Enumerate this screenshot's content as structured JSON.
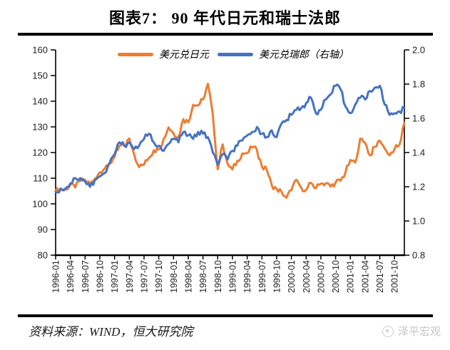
{
  "title": "图表7：  90 年代日元和瑞士法郎",
  "footer": {
    "source": "资料来源：WIND，恒大研究院",
    "brand": "泽平宏观",
    "brand_icon": "circle-logo"
  },
  "colors": {
    "usdjpy_line": "#ED7D31",
    "usdchf_line": "#4472C4",
    "axis": "#000000",
    "brand_gray": "#C6C6C6"
  },
  "chart_data": {
    "type": "line",
    "title": "图表7： 90 年代日元和瑞士法郎",
    "x_start": "1996-01",
    "x_end": "2001-12",
    "x_tick_labels": [
      "1996-01",
      "1996-04",
      "1996-07",
      "1996-10",
      "1997-01",
      "1997-04",
      "1997-07",
      "1997-10",
      "1998-01",
      "1998-04",
      "1998-07",
      "1998-10",
      "1999-01",
      "1999-04",
      "1999-07",
      "1999-10",
      "2000-01",
      "2000-04",
      "2000-07",
      "2000-10",
      "2001-01",
      "2001-04",
      "2001-07",
      "2001-10"
    ],
    "left_axis": {
      "min": 80,
      "max": 160,
      "step": 10,
      "tick_labels": [
        "160",
        "150",
        "140",
        "130",
        "120",
        "110",
        "100",
        "90",
        "80"
      ]
    },
    "right_axis": {
      "min": 0.8,
      "max": 2.0,
      "step": 0.2,
      "tick_labels": [
        "2.0",
        "1.8",
        "1.6",
        "1.4",
        "1.2",
        "1.0",
        "0.8"
      ]
    },
    "legend_position": "top",
    "grid": false,
    "series": [
      {
        "name": "美元兑日元",
        "axis": "left",
        "color": "#ED7D31",
        "monthly_values": [
          105.0,
          105.6,
          105.8,
          107.4,
          106.4,
          108.9,
          109.3,
          107.6,
          109.8,
          112.3,
          113.8,
          115.8,
          118.2,
          122.6,
          122.5,
          125.5,
          119.2,
          114.3,
          115.3,
          117.9,
          120.9,
          121.2,
          125.3,
          129.8,
          127.5,
          126.1,
          133.0,
          131.8,
          138.6,
          138.3,
          140.7,
          146.8,
          134.9,
          113.5,
          123.2,
          115.6,
          113.4,
          116.8,
          119.6,
          119.8,
          122.0,
          120.9,
          114.5,
          113.2,
          107.3,
          105.9,
          104.7,
          102.4,
          105.3,
          109.4,
          106.3,
          105.5,
          108.2,
          106.1,
          107.9,
          108.0,
          106.7,
          108.4,
          109.0,
          112.2,
          117.1,
          116.1,
          125.4,
          123.8,
          118.9,
          122.2,
          124.6,
          121.5,
          118.9,
          121.3,
          123.0,
          131.5
        ]
      },
      {
        "name": "美元兑瑞郎（右轴）",
        "axis": "right",
        "color": "#4472C4",
        "monthly_values": [
          1.17,
          1.19,
          1.19,
          1.22,
          1.25,
          1.25,
          1.23,
          1.2,
          1.24,
          1.26,
          1.28,
          1.34,
          1.39,
          1.46,
          1.44,
          1.46,
          1.42,
          1.44,
          1.48,
          1.51,
          1.46,
          1.44,
          1.41,
          1.45,
          1.48,
          1.46,
          1.52,
          1.5,
          1.48,
          1.52,
          1.51,
          1.49,
          1.4,
          1.33,
          1.39,
          1.36,
          1.41,
          1.44,
          1.47,
          1.5,
          1.52,
          1.55,
          1.51,
          1.49,
          1.53,
          1.49,
          1.57,
          1.59,
          1.62,
          1.65,
          1.66,
          1.69,
          1.72,
          1.63,
          1.65,
          1.71,
          1.74,
          1.79,
          1.77,
          1.67,
          1.63,
          1.68,
          1.72,
          1.71,
          1.76,
          1.78,
          1.79,
          1.68,
          1.62,
          1.63,
          1.64,
          1.66
        ]
      }
    ]
  }
}
